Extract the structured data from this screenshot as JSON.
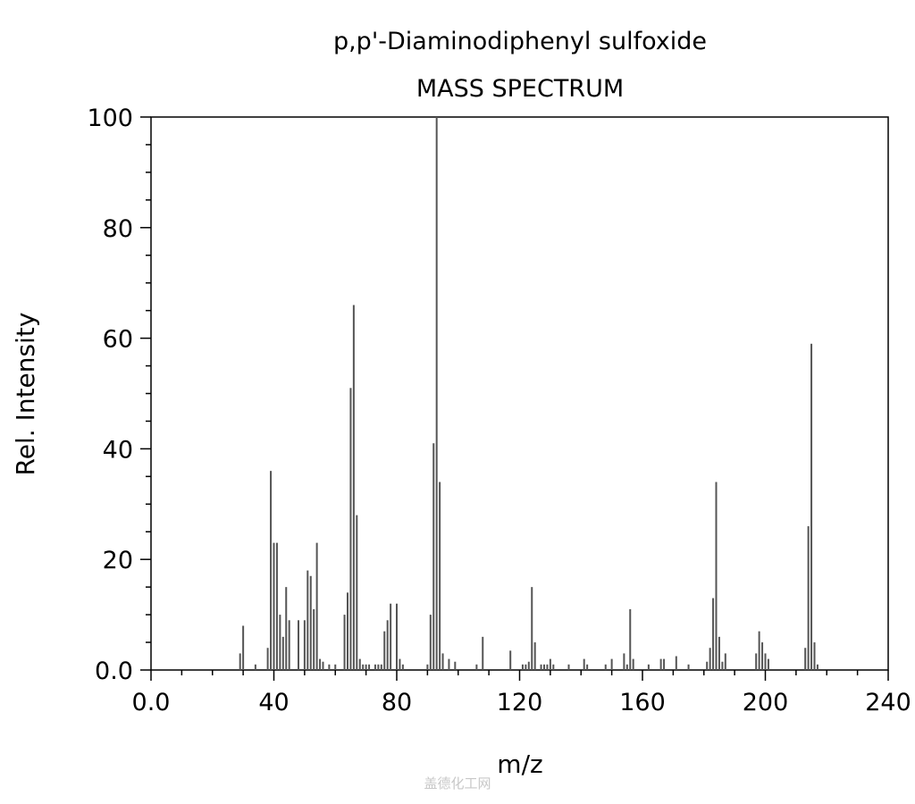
{
  "chart_data": {
    "type": "bar",
    "title": "p,p'-Diaminodiphenyl sulfoxide",
    "subtitle": "MASS SPECTRUM",
    "xlabel": "m/z",
    "ylabel": "Rel. Intensity",
    "xlim": [
      0,
      240
    ],
    "ylim": [
      0,
      100
    ],
    "x_ticks": [
      "0.0",
      "40",
      "80",
      "120",
      "160",
      "200",
      "240"
    ],
    "y_ticks": [
      "0.0",
      "20",
      "40",
      "60",
      "80",
      "100"
    ],
    "grid": false,
    "legend": "none",
    "peaks": [
      {
        "x": 29,
        "y": 3
      },
      {
        "x": 30,
        "y": 8
      },
      {
        "x": 34,
        "y": 1
      },
      {
        "x": 38,
        "y": 4
      },
      {
        "x": 39,
        "y": 36
      },
      {
        "x": 40,
        "y": 23
      },
      {
        "x": 41,
        "y": 23
      },
      {
        "x": 42,
        "y": 10
      },
      {
        "x": 43,
        "y": 6
      },
      {
        "x": 44,
        "y": 15
      },
      {
        "x": 45,
        "y": 9
      },
      {
        "x": 48,
        "y": 9
      },
      {
        "x": 50,
        "y": 9
      },
      {
        "x": 51,
        "y": 18
      },
      {
        "x": 52,
        "y": 17
      },
      {
        "x": 53,
        "y": 11
      },
      {
        "x": 54,
        "y": 23
      },
      {
        "x": 55,
        "y": 2
      },
      {
        "x": 56,
        "y": 1.5
      },
      {
        "x": 58,
        "y": 1
      },
      {
        "x": 60,
        "y": 1
      },
      {
        "x": 63,
        "y": 10
      },
      {
        "x": 64,
        "y": 14
      },
      {
        "x": 65,
        "y": 51
      },
      {
        "x": 66,
        "y": 66
      },
      {
        "x": 67,
        "y": 28
      },
      {
        "x": 68,
        "y": 2
      },
      {
        "x": 69,
        "y": 1
      },
      {
        "x": 70,
        "y": 1
      },
      {
        "x": 71,
        "y": 1
      },
      {
        "x": 73,
        "y": 1
      },
      {
        "x": 74,
        "y": 1
      },
      {
        "x": 75,
        "y": 1
      },
      {
        "x": 76,
        "y": 7
      },
      {
        "x": 77,
        "y": 9
      },
      {
        "x": 78,
        "y": 12
      },
      {
        "x": 80,
        "y": 12
      },
      {
        "x": 81,
        "y": 2
      },
      {
        "x": 82,
        "y": 1
      },
      {
        "x": 90,
        "y": 1
      },
      {
        "x": 91,
        "y": 10
      },
      {
        "x": 92,
        "y": 41
      },
      {
        "x": 93,
        "y": 100
      },
      {
        "x": 94,
        "y": 34
      },
      {
        "x": 95,
        "y": 3
      },
      {
        "x": 97,
        "y": 2
      },
      {
        "x": 99,
        "y": 1.5
      },
      {
        "x": 106,
        "y": 1
      },
      {
        "x": 108,
        "y": 6
      },
      {
        "x": 117,
        "y": 3.5
      },
      {
        "x": 121,
        "y": 1
      },
      {
        "x": 122,
        "y": 1
      },
      {
        "x": 123,
        "y": 1.5
      },
      {
        "x": 124,
        "y": 15
      },
      {
        "x": 125,
        "y": 5
      },
      {
        "x": 127,
        "y": 1
      },
      {
        "x": 128,
        "y": 1
      },
      {
        "x": 129,
        "y": 1
      },
      {
        "x": 130,
        "y": 2
      },
      {
        "x": 131,
        "y": 1
      },
      {
        "x": 136,
        "y": 1
      },
      {
        "x": 141,
        "y": 2
      },
      {
        "x": 142,
        "y": 1
      },
      {
        "x": 148,
        "y": 1
      },
      {
        "x": 150,
        "y": 2
      },
      {
        "x": 154,
        "y": 3
      },
      {
        "x": 155,
        "y": 1
      },
      {
        "x": 156,
        "y": 11
      },
      {
        "x": 157,
        "y": 2
      },
      {
        "x": 162,
        "y": 1
      },
      {
        "x": 166,
        "y": 2
      },
      {
        "x": 167,
        "y": 2
      },
      {
        "x": 171,
        "y": 2.5
      },
      {
        "x": 175,
        "y": 1
      },
      {
        "x": 181,
        "y": 1.5
      },
      {
        "x": 182,
        "y": 4
      },
      {
        "x": 183,
        "y": 13
      },
      {
        "x": 184,
        "y": 34
      },
      {
        "x": 185,
        "y": 6
      },
      {
        "x": 186,
        "y": 1.5
      },
      {
        "x": 187,
        "y": 3
      },
      {
        "x": 197,
        "y": 3
      },
      {
        "x": 198,
        "y": 7
      },
      {
        "x": 199,
        "y": 5
      },
      {
        "x": 200,
        "y": 3
      },
      {
        "x": 201,
        "y": 2
      },
      {
        "x": 213,
        "y": 4
      },
      {
        "x": 214,
        "y": 26
      },
      {
        "x": 215,
        "y": 59
      },
      {
        "x": 216,
        "y": 5
      },
      {
        "x": 217,
        "y": 1
      }
    ]
  },
  "watermark": "盖德化工网",
  "colors": {
    "peak": "#555555",
    "axis": "#000000",
    "background": "#ffffff"
  }
}
